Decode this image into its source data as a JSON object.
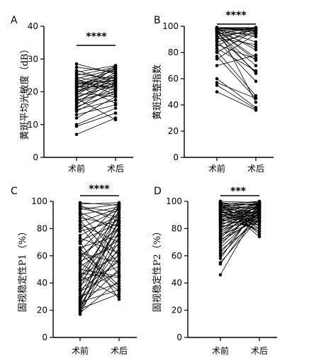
{
  "chart_data": [
    {
      "type": "scatter",
      "panel": "A",
      "ylabel": "黄斑平均光敏度（dB）",
      "categories": [
        "术前",
        "术后"
      ],
      "ylim": [
        0,
        40
      ],
      "yticks": [
        0,
        10,
        20,
        30,
        40
      ],
      "significance": "****",
      "pairs": [
        [
          28.5,
          25.5
        ],
        [
          27.5,
          26.0
        ],
        [
          26.0,
          28.0
        ],
        [
          25.5,
          24.0
        ],
        [
          25.0,
          27.5
        ],
        [
          24.5,
          22.0
        ],
        [
          24.0,
          27.0
        ],
        [
          23.5,
          21.0
        ],
        [
          23.0,
          26.5
        ],
        [
          22.5,
          25.0
        ],
        [
          22.0,
          24.5
        ],
        [
          21.5,
          23.5
        ],
        [
          21.0,
          28.0
        ],
        [
          20.5,
          23.0
        ],
        [
          20.0,
          22.5
        ],
        [
          19.5,
          18.5
        ],
        [
          19.0,
          26.0
        ],
        [
          18.5,
          22.0
        ],
        [
          18.0,
          24.0
        ],
        [
          17.5,
          20.0
        ],
        [
          17.0,
          23.0
        ],
        [
          16.5,
          21.0
        ],
        [
          16.0,
          25.5
        ],
        [
          15.5,
          19.5
        ],
        [
          15.0,
          22.5
        ],
        [
          14.5,
          17.5
        ],
        [
          14.0,
          20.5
        ],
        [
          13.0,
          16.0
        ],
        [
          12.0,
          18.5
        ],
        [
          10.0,
          15.0
        ],
        [
          9.5,
          13.5
        ],
        [
          7.0,
          12.0
        ],
        [
          23.0,
          20.5
        ],
        [
          22.0,
          16.5
        ],
        [
          21.0,
          27.0
        ],
        [
          20.0,
          24.5
        ],
        [
          26.5,
          23.0
        ],
        [
          24.0,
          19.0
        ],
        [
          18.0,
          11.5
        ],
        [
          19.5,
          27.5
        ],
        [
          22.5,
          23.5
        ],
        [
          21.5,
          21.5
        ]
      ]
    },
    {
      "type": "scatter",
      "panel": "B",
      "ylabel": "黄斑完整指数",
      "categories": [
        "术前",
        "术后"
      ],
      "ylim": [
        0,
        100
      ],
      "yticks": [
        0,
        20,
        40,
        60,
        80,
        100
      ],
      "significance": "****",
      "pairs": [
        [
          99,
          99
        ],
        [
          99,
          98
        ],
        [
          99,
          97
        ],
        [
          99,
          96
        ],
        [
          99,
          95
        ],
        [
          98,
          99
        ],
        [
          98,
          92
        ],
        [
          98,
          88
        ],
        [
          97,
          99
        ],
        [
          97,
          76
        ],
        [
          96,
          98
        ],
        [
          96,
          84
        ],
        [
          95,
          94
        ],
        [
          95,
          70
        ],
        [
          94,
          99
        ],
        [
          93,
          65
        ],
        [
          92,
          97
        ],
        [
          91,
          86
        ],
        [
          90,
          99
        ],
        [
          89,
          58
        ],
        [
          88,
          95
        ],
        [
          86,
          75
        ],
        [
          85,
          99
        ],
        [
          83,
          66
        ],
        [
          81,
          47
        ],
        [
          80,
          97
        ],
        [
          77,
          45
        ],
        [
          75,
          94
        ],
        [
          70,
          78
        ],
        [
          60,
          38
        ],
        [
          57,
          45
        ],
        [
          55,
          37
        ],
        [
          50,
          36
        ],
        [
          99,
          42
        ],
        [
          98,
          82
        ],
        [
          97,
          74
        ],
        [
          96,
          64
        ]
      ]
    },
    {
      "type": "scatter",
      "panel": "C",
      "ylabel": "固视稳定性P1（%）",
      "categories": [
        "术前",
        "术后"
      ],
      "ylim": [
        0,
        100
      ],
      "yticks": [
        0,
        20,
        40,
        60,
        80,
        100
      ],
      "significance": "****",
      "pairs": [
        [
          99,
          97
        ],
        [
          98,
          99
        ],
        [
          97,
          85
        ],
        [
          96,
          92
        ],
        [
          95,
          88
        ],
        [
          94,
          98
        ],
        [
          92,
          78
        ],
        [
          90,
          96
        ],
        [
          88,
          82
        ],
        [
          85,
          95
        ],
        [
          83,
          70
        ],
        [
          80,
          94
        ],
        [
          78,
          86
        ],
        [
          75,
          90
        ],
        [
          73,
          62
        ],
        [
          71,
          84
        ],
        [
          69,
          98
        ],
        [
          66,
          75
        ],
        [
          64,
          92
        ],
        [
          62,
          55
        ],
        [
          60,
          80
        ],
        [
          58,
          88
        ],
        [
          56,
          68
        ],
        [
          54,
          96
        ],
        [
          52,
          72
        ],
        [
          50,
          45
        ],
        [
          48,
          84
        ],
        [
          46,
          60
        ],
        [
          44,
          90
        ],
        [
          42,
          52
        ],
        [
          40,
          76
        ],
        [
          38,
          64
        ],
        [
          36,
          98
        ],
        [
          34,
          48
        ],
        [
          32,
          82
        ],
        [
          30,
          40
        ],
        [
          29,
          70
        ],
        [
          28,
          58
        ],
        [
          27,
          86
        ],
        [
          26,
          35
        ],
        [
          25,
          94
        ],
        [
          24,
          66
        ],
        [
          23,
          50
        ],
        [
          22,
          78
        ],
        [
          21,
          32
        ],
        [
          20,
          62
        ],
        [
          19,
          88
        ],
        [
          18,
          42
        ],
        [
          17,
          74
        ],
        [
          45,
          30
        ],
        [
          55,
          34
        ],
        [
          65,
          38
        ],
        [
          70,
          28
        ],
        [
          35,
          56
        ],
        [
          43,
          80
        ],
        [
          47,
          44
        ],
        [
          62,
          36
        ],
        [
          82,
          46
        ],
        [
          86,
          54
        ],
        [
          91,
          60
        ]
      ]
    },
    {
      "type": "scatter",
      "panel": "D",
      "ylabel": "固视稳定性P2（%）",
      "categories": [
        "术前",
        "术后"
      ],
      "ylim": [
        0,
        100
      ],
      "yticks": [
        0,
        20,
        40,
        60,
        80,
        100
      ],
      "significance": "***",
      "pairs": [
        [
          100,
          99
        ],
        [
          99,
          97
        ],
        [
          99,
          93
        ],
        [
          98,
          100
        ],
        [
          98,
          90
        ],
        [
          97,
          98
        ],
        [
          97,
          87
        ],
        [
          96,
          95
        ],
        [
          96,
          84
        ],
        [
          95,
          99
        ],
        [
          95,
          91
        ],
        [
          94,
          88
        ],
        [
          94,
          96
        ],
        [
          93,
          82
        ],
        [
          93,
          98
        ],
        [
          92,
          92
        ],
        [
          92,
          86
        ],
        [
          91,
          99
        ],
        [
          91,
          78
        ],
        [
          90,
          95
        ],
        [
          90,
          89
        ],
        [
          89,
          97
        ],
        [
          89,
          85
        ],
        [
          88,
          93
        ],
        [
          88,
          99
        ],
        [
          87,
          90
        ],
        [
          87,
          80
        ],
        [
          86,
          96
        ],
        [
          86,
          88
        ],
        [
          85,
          94
        ],
        [
          84,
          99
        ],
        [
          84,
          86
        ],
        [
          83,
          92
        ],
        [
          82,
          97
        ],
        [
          82,
          83
        ],
        [
          81,
          90
        ],
        [
          80,
          95
        ],
        [
          79,
          88
        ],
        [
          78,
          98
        ],
        [
          77,
          93
        ],
        [
          76,
          85
        ],
        [
          75,
          96
        ],
        [
          74,
          91
        ],
        [
          73,
          99
        ],
        [
          72,
          87
        ],
        [
          71,
          94
        ],
        [
          70,
          89
        ],
        [
          68,
          97
        ],
        [
          66,
          92
        ],
        [
          64,
          86
        ],
        [
          62,
          95
        ],
        [
          60,
          90
        ],
        [
          58,
          98
        ],
        [
          55,
          88
        ],
        [
          54,
          93
        ],
        [
          46,
          96
        ],
        [
          99,
          76
        ],
        [
          98,
          74
        ],
        [
          97,
          80
        ],
        [
          100,
          82
        ],
        [
          94,
          78
        ],
        [
          96,
          100
        ]
      ]
    }
  ]
}
